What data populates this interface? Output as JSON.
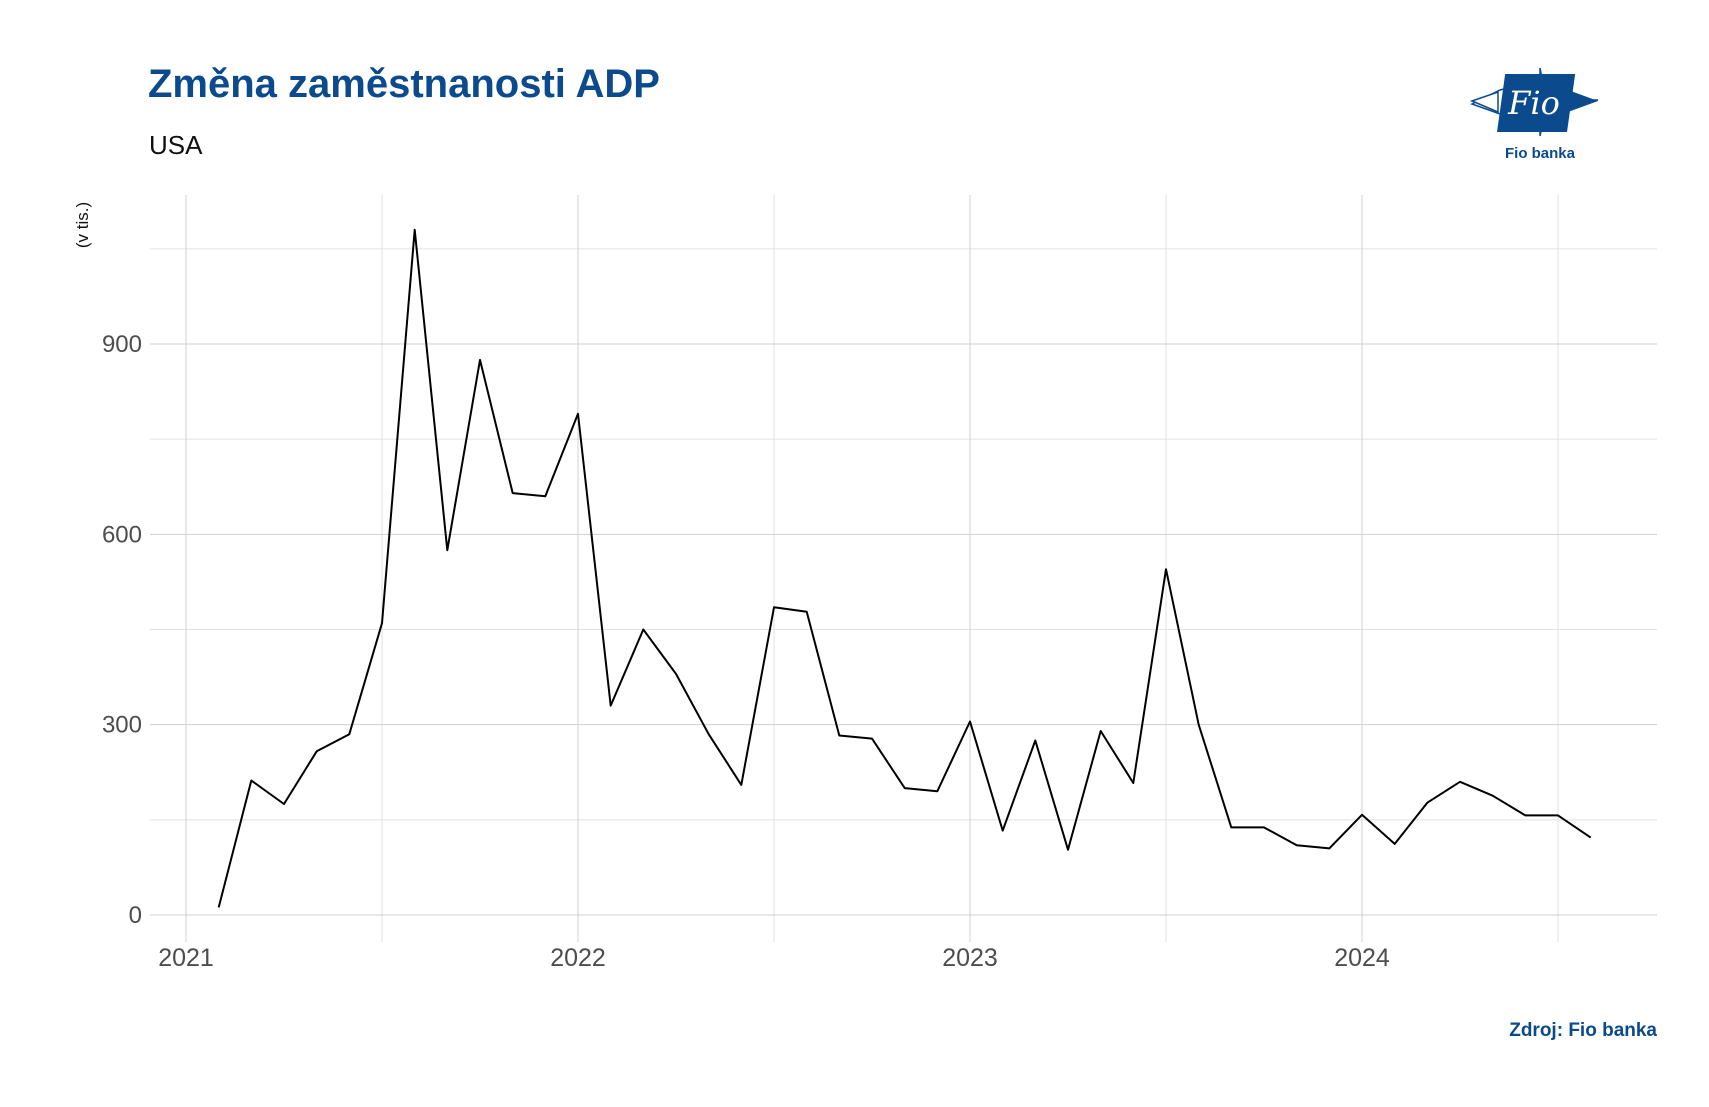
{
  "header": {
    "title": "Změna zaměstnanosti ADP",
    "subtitle": "USA"
  },
  "logo": {
    "text": "Fio",
    "caption": "Fio banka"
  },
  "footer": {
    "source": "Zdroj: Fio banka"
  },
  "colors": {
    "brand": "#0b4a8c",
    "line": "#000000",
    "grid_major": "#d0d0d0",
    "grid_minor": "#e2e2e2",
    "tick_text": "#4d4d4d"
  },
  "chart_data": {
    "type": "line",
    "title": "Změna zaměstnanosti ADP",
    "subtitle": "USA",
    "ylabel": "(v tis.)",
    "xlabel": "",
    "ylim": [
      0,
      1150
    ],
    "yticks": [
      0,
      300,
      600,
      900
    ],
    "xticks": [
      "2021",
      "2022",
      "2023",
      "2024"
    ],
    "grid": true,
    "legend": "none",
    "series": [
      {
        "x": [
          "2021-02",
          "2021-03",
          "2021-04",
          "2021-05",
          "2021-06",
          "2021-07",
          "2021-08",
          "2021-09",
          "2021-10",
          "2021-11",
          "2021-12",
          "2022-01",
          "2022-02",
          "2022-03",
          "2022-04",
          "2022-05",
          "2022-06",
          "2022-07",
          "2022-08",
          "2022-09",
          "2022-10",
          "2022-11",
          "2022-12",
          "2023-01",
          "2023-02",
          "2023-03",
          "2023-04",
          "2023-05",
          "2023-06",
          "2023-07",
          "2023-08",
          "2023-09",
          "2023-10",
          "2023-11",
          "2023-12",
          "2024-01",
          "2024-02",
          "2024-03",
          "2024-04",
          "2024-05",
          "2024-06",
          "2024-07",
          "2024-08"
        ],
        "values": [
          12,
          212,
          175,
          258,
          285,
          460,
          1080,
          575,
          875,
          665,
          660,
          790,
          330,
          450,
          380,
          285,
          205,
          485,
          478,
          283,
          278,
          200,
          195,
          305,
          133,
          275,
          103,
          290,
          208,
          545,
          300,
          138,
          138,
          110,
          105,
          158,
          112,
          177,
          210,
          188,
          157,
          157,
          122
        ]
      }
    ]
  }
}
